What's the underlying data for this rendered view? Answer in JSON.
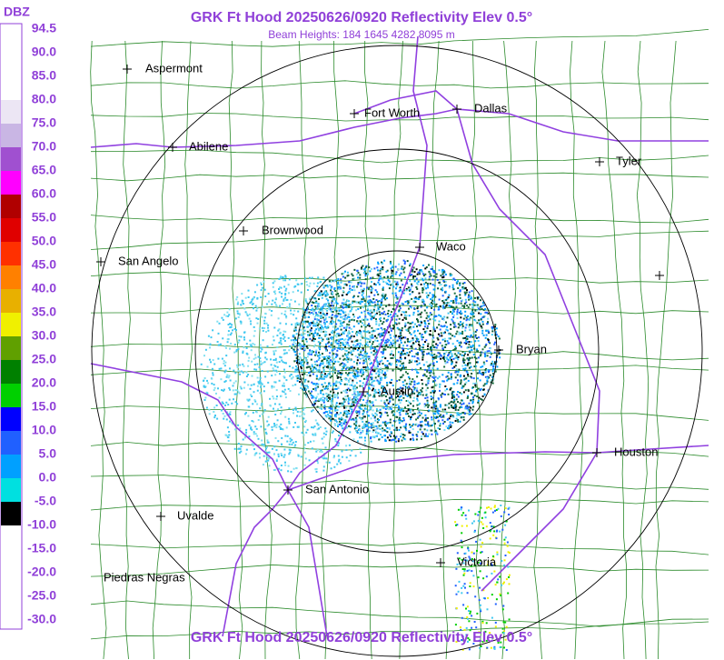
{
  "header": {
    "title": "GRK Ft Hood 20250626/0920 Reflectivity Elev 0.5°",
    "subtitle": "Beam Heights: 184 1645 4282 8095 m"
  },
  "footer": {
    "title": "GRK Ft Hood 20250626/0920 Reflectivity Elev 0.5°"
  },
  "legend": {
    "unit": "DBZ",
    "labels": [
      "94.5",
      "90.0",
      "85.0",
      "80.0",
      "75.0",
      "70.0",
      "65.0",
      "60.0",
      "55.0",
      "50.0",
      "45.0",
      "40.0",
      "35.0",
      "30.0",
      "25.0",
      "20.0",
      "15.0",
      "10.0",
      "5.0",
      "0.0",
      "-5.0",
      "-10.0",
      "-15.0",
      "-20.0",
      "-25.0",
      "-30.0"
    ],
    "colors": [
      "#ffffff",
      "#ffffff",
      "#ffffff",
      "#ece6f4",
      "#c9b6e4",
      "#a050d0",
      "#ff00ff",
      "#b00000",
      "#e00000",
      "#ff3000",
      "#ff8000",
      "#e8b000",
      "#f0f000",
      "#60a000",
      "#008000",
      "#00d000",
      "#0000ff",
      "#2060ff",
      "#00a0ff",
      "#00e0e0",
      "#000000",
      "#ffffff",
      "#ffffff",
      "#ffffff",
      "#ffffff"
    ]
  },
  "cities": [
    "Aspermont",
    "Fort Worth",
    "Dallas",
    "Abilene",
    "Tyler",
    "Brownwood",
    "Waco",
    "San Angelo",
    "Bryan",
    "Austin",
    "Houston",
    "San Antonio",
    "Uvalde",
    "Victoria",
    "Piedras Negras"
  ]
}
